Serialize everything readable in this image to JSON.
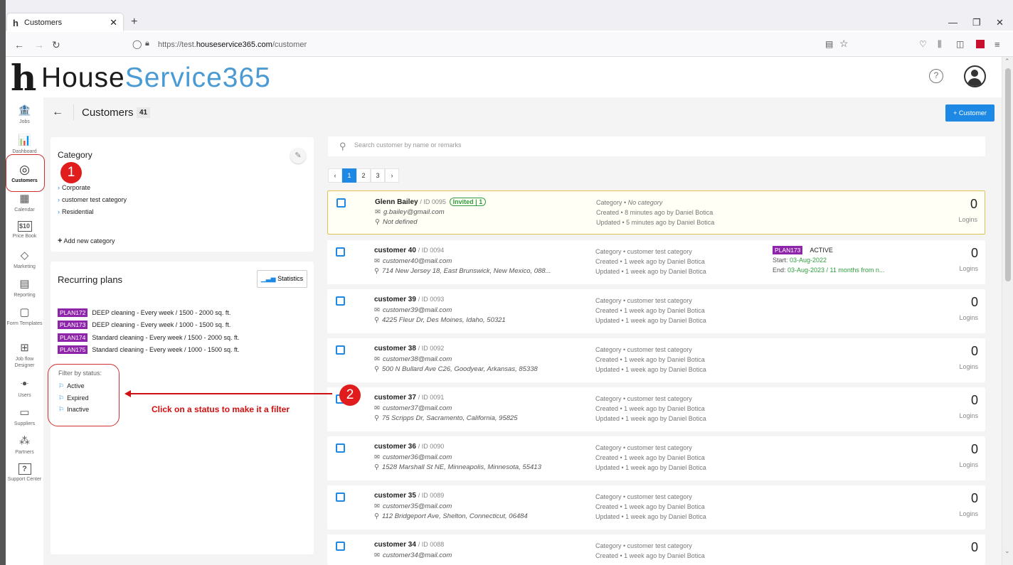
{
  "browser": {
    "tab_title": "Customers",
    "tab_favicon": "h",
    "url_prefix": "https://test.",
    "url_domain": "houseservice365.com",
    "url_path": "/customer"
  },
  "app": {
    "logo_h": "h",
    "logo_part1": "House",
    "logo_part2": "Service365",
    "accent": "#1e88e5",
    "logo_blue": "#4a9ad4",
    "tag_purple": "#8e24aa"
  },
  "sidebar": {
    "items": [
      {
        "label": "Jobs",
        "icon": "bank-icon",
        "glyph": "🏦"
      },
      {
        "label": "Dashboard",
        "icon": "bar-chart-icon",
        "glyph": "📊"
      },
      {
        "label": "Customers",
        "icon": "target-icon",
        "glyph": "◎"
      },
      {
        "label": "Calendar",
        "icon": "calendar-icon",
        "glyph": "▦"
      },
      {
        "label": "Price Book",
        "icon": "price-tag-icon",
        "glyph": "$10"
      },
      {
        "label": "Marketing",
        "icon": "tag-icon",
        "glyph": "◇"
      },
      {
        "label": "Reporting",
        "icon": "report-icon",
        "glyph": "▤"
      },
      {
        "label": "Form Templates",
        "icon": "form-icon",
        "glyph": "▢"
      },
      {
        "label": "Job flow Designer",
        "icon": "flow-icon",
        "glyph": "⊞"
      },
      {
        "label": "Users",
        "icon": "users-icon",
        "glyph": "ꔹ"
      },
      {
        "label": "Suppliers",
        "icon": "truck-icon",
        "glyph": "▭"
      },
      {
        "label": "Partners",
        "icon": "partners-icon",
        "glyph": "⁂"
      },
      {
        "label": "Support Center",
        "icon": "support-icon",
        "glyph": "?"
      }
    ]
  },
  "toolbar": {
    "title": "Customers",
    "count": "41",
    "add_label": "+  Customer"
  },
  "category": {
    "title": "Category",
    "items": [
      "Corporate",
      "customer test category",
      "Residential"
    ],
    "add_label": "Add new category"
  },
  "recurring": {
    "title": "Recurring plans",
    "stats_label": "Statistics",
    "plans": [
      {
        "tag": "PLAN172",
        "text": "DEEP cleaning - Every week / 1500 - 2000 sq. ft."
      },
      {
        "tag": "PLAN173",
        "text": "DEEP cleaning - Every week / 1000 - 1500 sq. ft."
      },
      {
        "tag": "PLAN174",
        "text": "Standard cleaning - Every week / 1500 - 2000 sq. ft."
      },
      {
        "tag": "PLAN175",
        "text": "Standard cleaning - Every week / 1000 - 1500 sq. ft."
      }
    ],
    "filter_title": "Filter by status:",
    "filters": [
      "Active",
      "Expired",
      "Inactive"
    ]
  },
  "annotations": {
    "badge1": "1",
    "badge2": "2",
    "instruction": "Click on a status to make it a filter"
  },
  "search": {
    "placeholder": "Search customer by name or remarks"
  },
  "pagination": {
    "prev": "‹",
    "pages": [
      "1",
      "2",
      "3"
    ],
    "next": "›",
    "current": "1"
  },
  "customers": [
    {
      "name": "Glenn Bailey",
      "id": "/ ID 0095",
      "invited": "Invited | 1",
      "email": "g.bailey@gmail.com",
      "address": "Not defined",
      "category_prefix": "Category • ",
      "category": "No category",
      "created": "Created • 8 minutes ago by Daniel Botica",
      "updated": "Updated • 5 minutes ago by Daniel Botica",
      "logins": "0",
      "logins_label": "Logins"
    },
    {
      "name": "customer 40",
      "id": "/ ID 0094",
      "email": "customer40@mail.com",
      "address": "714 New Jersey 18, East Brunswick, New Mexico, 088...",
      "category_prefix": "Category • ",
      "category": "customer test category",
      "created": "Created • 1 week ago by Daniel Botica",
      "updated": "Updated • 1 week ago by Daniel Botica",
      "plan_tag": "PLAN173",
      "plan_status": "ACTIVE",
      "plan_start_label": "Start: ",
      "plan_start": "03-Aug-2022",
      "plan_end_label": "End: ",
      "plan_end": "03-Aug-2023 / 11 months from n...",
      "logins": "0",
      "logins_label": "Logins"
    },
    {
      "name": "customer 39",
      "id": "/ ID 0093",
      "email": "customer39@mail.com",
      "address": "4225 Fleur Dr, Des Moines, Idaho, 50321",
      "category_prefix": "Category • ",
      "category": "customer test category",
      "created": "Created • 1 week ago by Daniel Botica",
      "updated": "Updated • 1 week ago by Daniel Botica",
      "logins": "0",
      "logins_label": "Logins"
    },
    {
      "name": "customer 38",
      "id": "/ ID 0092",
      "email": "customer38@mail.com",
      "address": "500 N Bullard Ave C26, Goodyear, Arkansas, 85338",
      "category_prefix": "Category • ",
      "category": "customer test category",
      "created": "Created • 1 week ago by Daniel Botica",
      "updated": "Updated • 1 week ago by Daniel Botica",
      "logins": "0",
      "logins_label": "Logins"
    },
    {
      "name": "customer 37",
      "id": "/ ID 0091",
      "email": "customer37@mail.com",
      "address": "75 Scripps Dr, Sacramento, California, 95825",
      "category_prefix": "Category • ",
      "category": "customer test category",
      "created": "Created • 1 week ago by Daniel Botica",
      "updated": "Updated • 1 week ago by Daniel Botica",
      "logins": "0",
      "logins_label": "Logins"
    },
    {
      "name": "customer 36",
      "id": "/ ID 0090",
      "email": "customer36@mail.com",
      "address": "1528 Marshall St NE, Minneapolis, Minnesota, 55413",
      "category_prefix": "Category • ",
      "category": "customer test category",
      "created": "Created • 1 week ago by Daniel Botica",
      "updated": "Updated • 1 week ago by Daniel Botica",
      "logins": "0",
      "logins_label": "Logins"
    },
    {
      "name": "customer 35",
      "id": "/ ID 0089",
      "email": "customer35@mail.com",
      "address": "112 Bridgeport Ave, Shelton, Connecticut, 06484",
      "category_prefix": "Category • ",
      "category": "customer test category",
      "created": "Created • 1 week ago by Daniel Botica",
      "updated": "Updated • 1 week ago by Daniel Botica",
      "logins": "0",
      "logins_label": "Logins"
    },
    {
      "name": "customer 34",
      "id": "/ ID 0088",
      "email": "customer34@mail.com",
      "address": "",
      "category_prefix": "Category • ",
      "category": "customer test category",
      "created": "Created • 1 week ago by Daniel Botica",
      "updated": "",
      "logins": "0",
      "logins_label": ""
    }
  ]
}
